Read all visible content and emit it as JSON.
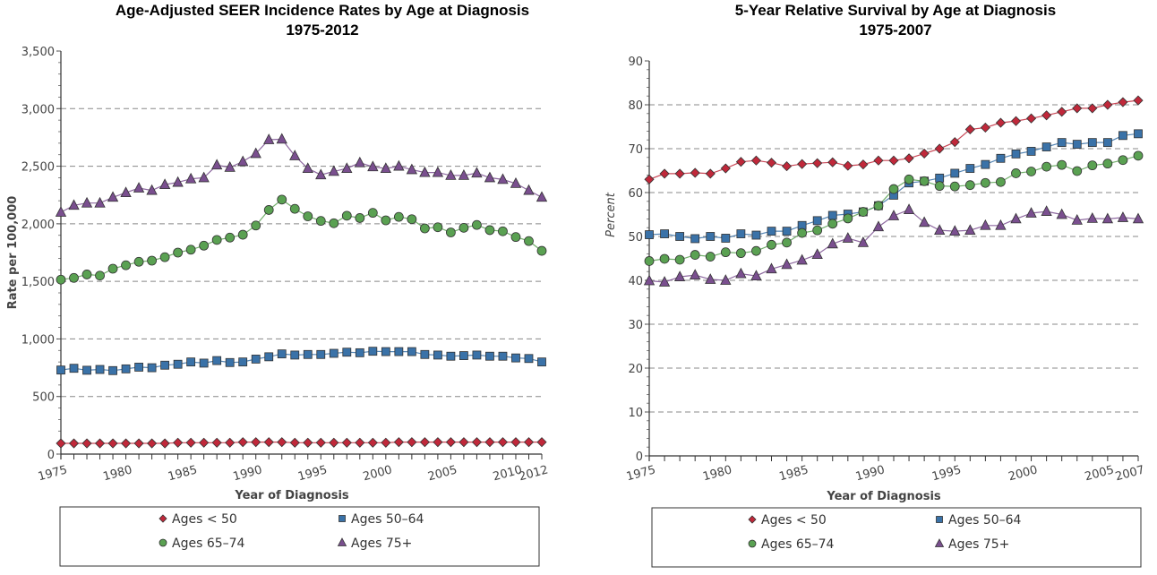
{
  "chart_data": [
    {
      "type": "line",
      "title": "Age-Adjusted SEER Incidence Rates by Age at Diagnosis",
      "subtitle": "1975-2012",
      "xlabel": "Year of Diagnosis",
      "ylabel": "Rate per 100,000",
      "xlim": [
        1975,
        2012
      ],
      "ylim": [
        0,
        3500
      ],
      "yticks": [
        0,
        500,
        1000,
        1500,
        2000,
        2500,
        3000,
        3500
      ],
      "ytick_labels": [
        "0",
        "500",
        "1,000",
        "1,500",
        "2,000",
        "2,500",
        "3,000",
        "3,500"
      ],
      "xticks": [
        1975,
        1980,
        1985,
        1990,
        1995,
        2000,
        2005,
        2010,
        2012
      ],
      "xtick_labels": [
        "1975",
        "1980",
        "1985",
        "1990",
        "1995",
        "2000",
        "2005",
        "2010",
        "2012"
      ],
      "grid": true,
      "legend_position": "bottom",
      "x": [
        1975,
        1976,
        1977,
        1978,
        1979,
        1980,
        1981,
        1982,
        1983,
        1984,
        1985,
        1986,
        1987,
        1988,
        1989,
        1990,
        1991,
        1992,
        1993,
        1994,
        1995,
        1996,
        1997,
        1998,
        1999,
        2000,
        2001,
        2002,
        2003,
        2004,
        2005,
        2006,
        2007,
        2008,
        2009,
        2010,
        2011,
        2012
      ],
      "series": [
        {
          "name": "Ages < 50",
          "marker": "diamond",
          "color": "#c0283a",
          "values": [
            93,
            93,
            93,
            93,
            93,
            93,
            93,
            93,
            93,
            99,
            99,
            99,
            99,
            99,
            104,
            104,
            104,
            104,
            99,
            99,
            99,
            99,
            99,
            99,
            99,
            99,
            104,
            104,
            104,
            104,
            104,
            104,
            104,
            104,
            104,
            104,
            104,
            104
          ]
        },
        {
          "name": "Ages 50-64",
          "marker": "square",
          "color": "#3a72a8",
          "values": [
            730,
            745,
            728,
            735,
            725,
            740,
            755,
            750,
            772,
            780,
            800,
            790,
            812,
            795,
            800,
            825,
            845,
            870,
            860,
            865,
            865,
            875,
            885,
            880,
            893,
            890,
            890,
            890,
            865,
            860,
            850,
            855,
            860,
            850,
            850,
            835,
            830,
            800
          ]
        },
        {
          "name": "Ages 65-74",
          "marker": "circle",
          "color": "#5aa152",
          "values": [
            1515,
            1530,
            1560,
            1550,
            1610,
            1640,
            1670,
            1680,
            1710,
            1750,
            1775,
            1810,
            1860,
            1880,
            1905,
            1985,
            2120,
            2210,
            2130,
            2065,
            2025,
            2005,
            2070,
            2050,
            2095,
            2030,
            2060,
            2040,
            1960,
            1970,
            1925,
            1965,
            1990,
            1945,
            1935,
            1885,
            1850,
            1765
          ]
        },
        {
          "name": "Ages 75+",
          "marker": "triangle",
          "color": "#7a4f8f",
          "values": [
            2100,
            2160,
            2180,
            2180,
            2230,
            2270,
            2310,
            2290,
            2340,
            2360,
            2390,
            2400,
            2510,
            2490,
            2540,
            2610,
            2730,
            2735,
            2590,
            2480,
            2425,
            2455,
            2480,
            2530,
            2495,
            2480,
            2500,
            2470,
            2445,
            2445,
            2420,
            2420,
            2440,
            2400,
            2385,
            2350,
            2290,
            2230
          ]
        }
      ]
    },
    {
      "type": "line",
      "title": "5-Year Relative Survival by Age at Diagnosis",
      "subtitle": "1975-2007",
      "xlabel": "Year of Diagnosis",
      "ylabel": "Percent",
      "xlim": [
        1975,
        2007
      ],
      "ylim": [
        0,
        90
      ],
      "yticks": [
        0,
        10,
        20,
        30,
        40,
        50,
        60,
        70,
        80,
        90
      ],
      "ytick_labels": [
        "0",
        "10",
        "20",
        "30",
        "40",
        "50",
        "60",
        "70",
        "80",
        "90"
      ],
      "xticks": [
        1975,
        1980,
        1985,
        1990,
        1995,
        2000,
        2005,
        2007
      ],
      "xtick_labels": [
        "1975",
        "1980",
        "1985",
        "1990",
        "1995",
        "2000",
        "2005",
        "2007"
      ],
      "grid": true,
      "legend_position": "bottom",
      "x": [
        1975,
        1976,
        1977,
        1978,
        1979,
        1980,
        1981,
        1982,
        1983,
        1984,
        1985,
        1986,
        1987,
        1988,
        1989,
        1990,
        1991,
        1992,
        1993,
        1994,
        1995,
        1996,
        1997,
        1998,
        1999,
        2000,
        2001,
        2002,
        2003,
        2004,
        2005,
        2006,
        2007
      ],
      "series": [
        {
          "name": "Ages < 50",
          "marker": "diamond",
          "color": "#c0283a",
          "values": [
            63.0,
            64.3,
            64.3,
            64.5,
            64.3,
            65.5,
            67.0,
            67.3,
            66.8,
            66.0,
            66.5,
            66.7,
            66.9,
            66.1,
            66.4,
            67.3,
            67.3,
            67.8,
            68.9,
            70.0,
            71.5,
            74.4,
            74.8,
            75.9,
            76.3,
            76.9,
            77.6,
            78.4,
            79.2,
            79.2,
            80.0,
            80.6,
            81.0
          ]
        },
        {
          "name": "Ages 50-64",
          "marker": "square",
          "color": "#3a72a8",
          "values": [
            50.4,
            50.6,
            50.0,
            49.5,
            50.0,
            49.6,
            50.6,
            50.3,
            51.2,
            51.2,
            52.5,
            53.6,
            54.8,
            55.1,
            55.6,
            57.0,
            59.4,
            62.2,
            62.6,
            63.3,
            64.4,
            65.5,
            66.4,
            67.8,
            68.8,
            69.4,
            70.4,
            71.4,
            71.0,
            71.4,
            71.4,
            73.0,
            73.4
          ]
        },
        {
          "name": "Ages 65-74",
          "marker": "circle",
          "color": "#5aa152",
          "values": [
            44.4,
            44.9,
            44.7,
            45.8,
            45.4,
            46.4,
            46.2,
            46.7,
            48.1,
            48.6,
            50.8,
            51.4,
            52.9,
            54.1,
            55.6,
            57.0,
            60.8,
            63.0,
            62.6,
            61.5,
            61.4,
            61.7,
            62.2,
            62.4,
            64.4,
            64.8,
            65.9,
            66.3,
            64.9,
            66.2,
            66.6,
            67.4,
            68.4
          ]
        },
        {
          "name": "Ages 75+",
          "marker": "triangle",
          "color": "#7a4f8f",
          "values": [
            39.9,
            39.6,
            40.8,
            41.2,
            40.2,
            40.0,
            41.5,
            41.0,
            42.6,
            43.6,
            44.6,
            45.9,
            48.3,
            49.6,
            48.6,
            52.2,
            54.7,
            56.1,
            53.2,
            51.4,
            51.2,
            51.4,
            52.5,
            52.5,
            54.0,
            55.3,
            55.7,
            55.0,
            53.7,
            54.1,
            54.0,
            54.3,
            54.0
          ]
        }
      ]
    }
  ]
}
